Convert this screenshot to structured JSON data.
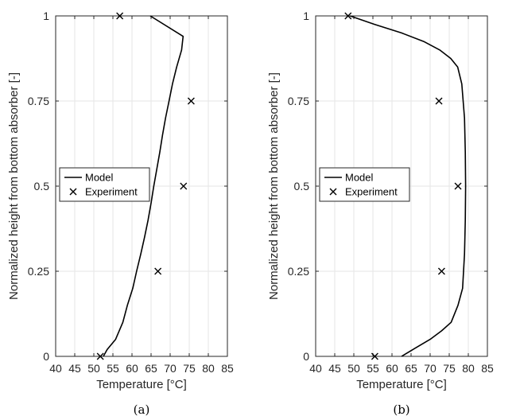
{
  "chart_data": [
    {
      "type": "line",
      "caption": "(a)",
      "xlabel": "Temperature [°C]",
      "ylabel": "Normalized height from bottom absorber [-]",
      "xlim": [
        40,
        85
      ],
      "ylim": [
        0,
        1
      ],
      "xticks": [
        "40",
        "45",
        "50",
        "55",
        "60",
        "65",
        "70",
        "75",
        "80",
        "85"
      ],
      "yticks": [
        "0",
        "0.25",
        "0.5",
        "0.75",
        "1"
      ],
      "grid": true,
      "legend": {
        "position": "center-left",
        "entries": [
          "Model",
          "Experiment"
        ]
      },
      "series": [
        {
          "name": "Model",
          "style": "line",
          "points": [
            [
              52.5,
              0
            ],
            [
              53.5,
              0.02
            ],
            [
              55.7,
              0.05
            ],
            [
              57.6,
              0.1
            ],
            [
              58.8,
              0.15
            ],
            [
              60.2,
              0.2
            ],
            [
              61.2,
              0.25
            ],
            [
              62.3,
              0.3
            ],
            [
              63.3,
              0.35
            ],
            [
              64.2,
              0.4
            ],
            [
              65.0,
              0.45
            ],
            [
              65.7,
              0.5
            ],
            [
              66.5,
              0.55
            ],
            [
              67.3,
              0.6
            ],
            [
              68.0,
              0.65
            ],
            [
              68.8,
              0.7
            ],
            [
              69.7,
              0.75
            ],
            [
              70.6,
              0.8
            ],
            [
              71.7,
              0.85
            ],
            [
              73.0,
              0.9
            ],
            [
              73.4,
              0.94
            ],
            [
              64.8,
              1.0
            ]
          ]
        },
        {
          "name": "Experiment",
          "style": "marker-x",
          "points": [
            [
              51.7,
              0
            ],
            [
              66.8,
              0.25
            ],
            [
              73.5,
              0.5
            ],
            [
              75.5,
              0.75
            ],
            [
              56.8,
              1.0
            ]
          ]
        }
      ]
    },
    {
      "type": "line",
      "caption": "(b)",
      "xlabel": "Temperature [°C]",
      "ylabel": "Normalized height from bottom absorber [-]",
      "xlim": [
        40,
        85
      ],
      "ylim": [
        0,
        1
      ],
      "xticks": [
        "40",
        "45",
        "50",
        "55",
        "60",
        "65",
        "70",
        "75",
        "80",
        "85"
      ],
      "yticks": [
        "0",
        "0.25",
        "0.5",
        "0.75",
        "1"
      ],
      "grid": true,
      "legend": {
        "position": "center-left",
        "entries": [
          "Model",
          "Experiment"
        ]
      },
      "series": [
        {
          "name": "Model",
          "style": "line",
          "points": [
            [
              62.5,
              0
            ],
            [
              66.2,
              0.025
            ],
            [
              70.0,
              0.05
            ],
            [
              73.0,
              0.075
            ],
            [
              75.5,
              0.1
            ],
            [
              77.3,
              0.15
            ],
            [
              78.5,
              0.2
            ],
            [
              79.0,
              0.3
            ],
            [
              79.2,
              0.4
            ],
            [
              79.3,
              0.5
            ],
            [
              79.2,
              0.6
            ],
            [
              79.0,
              0.7
            ],
            [
              78.3,
              0.8
            ],
            [
              77.2,
              0.85
            ],
            [
              75.4,
              0.875
            ],
            [
              72.5,
              0.9
            ],
            [
              68.3,
              0.925
            ],
            [
              62.5,
              0.95
            ],
            [
              55.5,
              0.975
            ],
            [
              49.0,
              1.0
            ]
          ]
        },
        {
          "name": "Experiment",
          "style": "marker-x",
          "points": [
            [
              55.5,
              0
            ],
            [
              73.0,
              0.25
            ],
            [
              77.3,
              0.5
            ],
            [
              72.3,
              0.75
            ],
            [
              48.5,
              1.0
            ]
          ]
        }
      ]
    }
  ]
}
